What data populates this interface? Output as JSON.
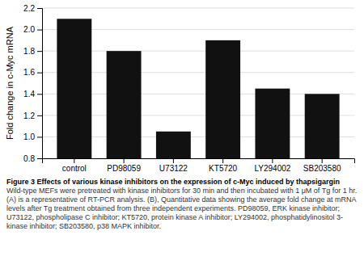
{
  "chart_data": {
    "type": "bar",
    "title": "Figure 3 Effects of various kinase inhibitors on the expression of c-Myc induced by thapsigargin",
    "subtitle": " Wild-type MEFs were pretreated with kinase inhibitors for 30 min and then incubated with 1 μM of Tg for 1 hr. (A) is a representative of RT-PCR analysis. (B), Quantitative data showing the average fold change at mRNA levels after Tg treatment obtained from three independent experiments. PD98059, ERK kinase inhibitor; U73122, phospholipase C inhibitor; KT5720, protein kinase A inhibitor; LY294002, phosphatidylinositol 3-kinase inhibitor; SB203580, p38 MAPK inhibitor.",
    "y_label": "Fold change in c-Myc mRNA",
    "categories": [
      "control",
      "PD98059",
      "U73122",
      "KT5720",
      "LY294002",
      "SB203580"
    ],
    "values": [
      2.1,
      1.8,
      1.05,
      1.9,
      1.45,
      1.4
    ],
    "color": "#111111",
    "ylim": [
      0.8,
      2.2
    ],
    "yticks": [
      0.8,
      {
        "value": 1.0,
        "label": "1.0"
      },
      1.2,
      1.4,
      1.6,
      1.8,
      {
        "value": 2.0,
        "label": "2.0"
      },
      2.2
    ],
    "grid": true
  }
}
